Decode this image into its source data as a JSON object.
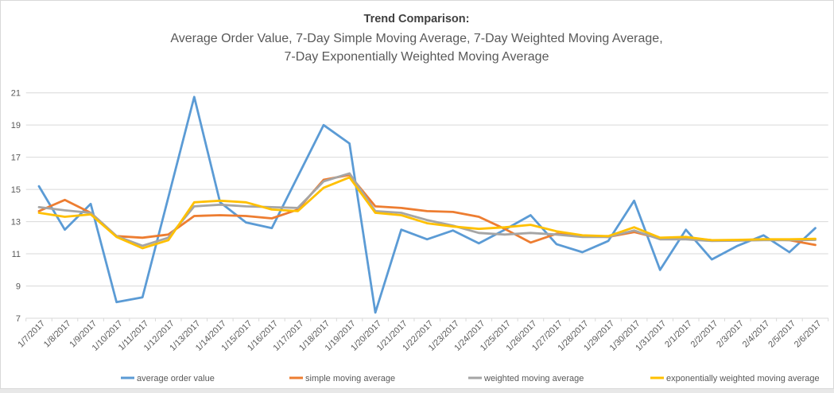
{
  "title": {
    "line1": "Trend Comparison:",
    "line2": "Average Order Value, 7-Day Simple Moving Average, 7-Day Weighted Moving Average,",
    "line3": "7-Day Exponentially Weighted Moving Average"
  },
  "colors": {
    "blue": "#5b9bd5",
    "orange": "#ed7d31",
    "gray": "#a5a5a5",
    "yellow": "#ffc000",
    "gridline": "#d9d9d9",
    "axis_text": "#595959",
    "outer_strip": "#e8e8e8",
    "frame_border": "#d9d9d9"
  },
  "chart_data": {
    "type": "line",
    "title": "Trend Comparison: Average Order Value, 7-Day Simple Moving Average, 7-Day Weighted Moving Average, 7-Day Exponentially Weighted Moving Average",
    "legend_position": "bottom",
    "grid": true,
    "ylim": [
      7,
      21
    ],
    "y_ticks": [
      7,
      9,
      11,
      13,
      15,
      17,
      19,
      21
    ],
    "x": [
      "1/7/2017",
      "1/8/2017",
      "1/9/2017",
      "1/10/2017",
      "1/11/2017",
      "1/12/2017",
      "1/13/2017",
      "1/14/2017",
      "1/15/2017",
      "1/16/2017",
      "1/17/2017",
      "1/18/2017",
      "1/19/2017",
      "1/20/2017",
      "1/21/2017",
      "1/22/2017",
      "1/23/2017",
      "1/24/2017",
      "1/25/2017",
      "1/26/2017",
      "1/27/2017",
      "1/28/2017",
      "1/29/2017",
      "1/30/2017",
      "1/31/2017",
      "2/1/2017",
      "2/2/2017",
      "2/3/2017",
      "2/4/2017",
      "2/5/2017",
      "2/6/2017"
    ],
    "series": [
      {
        "name": "average order value",
        "color": "#5b9bd5",
        "values": [
          15.2,
          12.5,
          14.1,
          8.0,
          8.3,
          14.5,
          20.75,
          14.2,
          12.95,
          12.6,
          15.8,
          19.0,
          17.85,
          7.35,
          12.5,
          11.9,
          12.45,
          11.65,
          12.5,
          13.4,
          11.6,
          11.1,
          11.8,
          14.3,
          10.0,
          12.5,
          10.65,
          11.5,
          12.15,
          11.1,
          12.6
        ]
      },
      {
        "name": "simple moving average",
        "color": "#ed7d31",
        "values": [
          13.65,
          14.35,
          13.55,
          12.1,
          12.0,
          12.2,
          13.35,
          13.4,
          13.35,
          13.2,
          13.75,
          15.6,
          15.9,
          13.95,
          13.85,
          13.65,
          13.6,
          13.3,
          12.55,
          11.7,
          12.25,
          12.1,
          12.05,
          12.35,
          11.95,
          12.0,
          11.85,
          11.85,
          11.9,
          11.85,
          11.55
        ]
      },
      {
        "name": "weighted moving average",
        "color": "#a5a5a5",
        "values": [
          13.9,
          13.7,
          13.55,
          12.1,
          11.5,
          12.0,
          13.95,
          14.05,
          13.95,
          13.9,
          13.85,
          15.5,
          16.0,
          13.65,
          13.55,
          13.1,
          12.75,
          12.3,
          12.2,
          12.3,
          12.2,
          12.05,
          12.05,
          12.45,
          11.9,
          11.9,
          11.8,
          11.82,
          11.85,
          11.85,
          11.87
        ]
      },
      {
        "name": "exponentially weighted moving average",
        "color": "#ffc000",
        "values": [
          13.55,
          13.3,
          13.45,
          12.05,
          11.35,
          11.85,
          14.2,
          14.3,
          14.2,
          13.75,
          13.65,
          15.1,
          15.75,
          13.55,
          13.4,
          12.9,
          12.7,
          12.55,
          12.65,
          12.8,
          12.4,
          12.15,
          12.1,
          12.65,
          12.0,
          12.05,
          11.85,
          11.87,
          11.9,
          11.9,
          11.93
        ]
      }
    ]
  }
}
